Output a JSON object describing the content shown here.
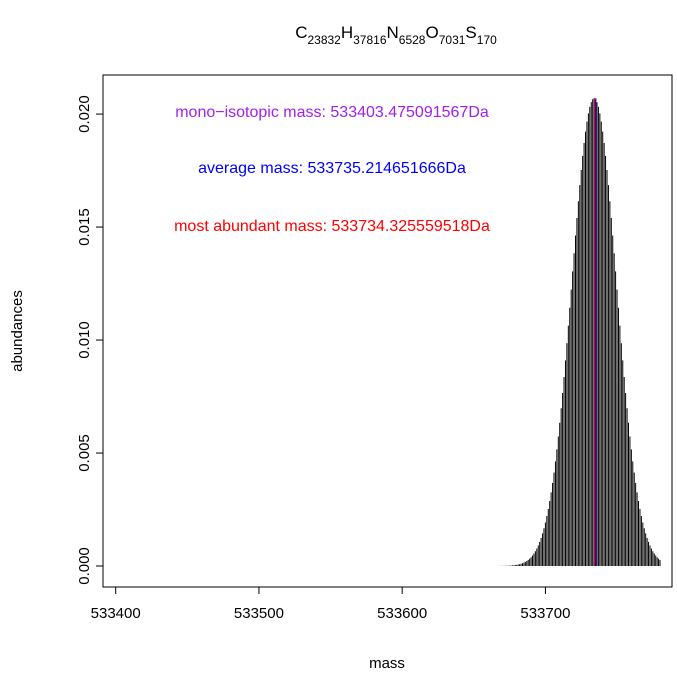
{
  "chart_data": {
    "type": "bar",
    "title_parts": [
      {
        "el": "C",
        "count": "23832"
      },
      {
        "el": "H",
        "count": "37816"
      },
      {
        "el": "N",
        "count": "6528"
      },
      {
        "el": "O",
        "count": "7031"
      },
      {
        "el": "S",
        "count": "170"
      }
    ],
    "xlabel": "mass",
    "ylabel": "abundances",
    "xlim": [
      533400,
      533785
    ],
    "ylim": [
      0,
      0.0208
    ],
    "x_ticks": [
      "533400",
      "533500",
      "533600",
      "533700"
    ],
    "x_tick_values": [
      533400,
      533500,
      533600,
      533700
    ],
    "y_ticks": [
      "0.000",
      "0.005",
      "0.010",
      "0.015",
      "0.020"
    ],
    "y_tick_values": [
      0,
      0.005,
      0.01,
      0.015,
      0.02
    ],
    "distribution": {
      "mass_start": 533403,
      "mass_end": 533780,
      "peak_mass": 533734,
      "peak_abundance": 0.0207,
      "sigma": 15.6,
      "bar_color": "#000000"
    },
    "annotations": {
      "mono": {
        "text": "mono−isotopic mass: 533403.475091567Da",
        "color": "#A020F0"
      },
      "average": {
        "text": "average mass: 533735.214651666Da",
        "color": "#0000FF",
        "value": 533735.214651666
      },
      "most_abundant": {
        "text": "most abundant mass: 533734.325559518Da",
        "color": "#FF0000",
        "value": 533734.325559518
      }
    }
  }
}
